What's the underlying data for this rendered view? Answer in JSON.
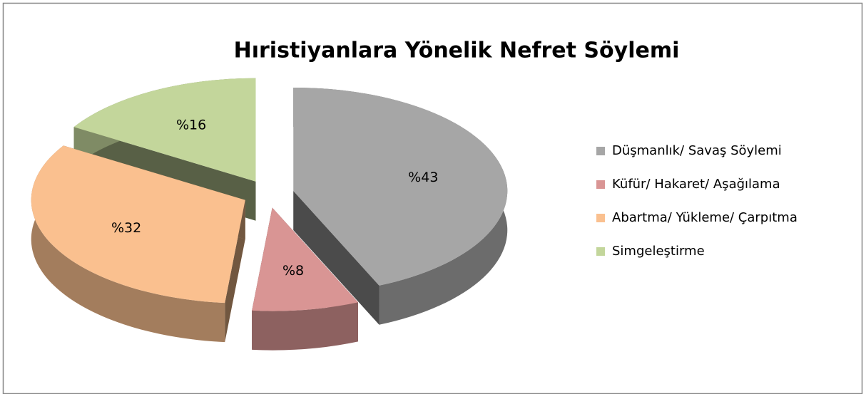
{
  "chart_data": {
    "type": "pie3d",
    "title": "Hıristiyanlara Yönelik Nefret Söylemi",
    "categories": [
      "Düşmanlık/ Savaş Söylemi",
      "Küfür/ Hakaret/ Aşağılama",
      "Abartma/ Yükleme/ Çarpıtma",
      "Simgeleştirme"
    ],
    "values": [
      43,
      8,
      32,
      16
    ],
    "value_labels": [
      "%43",
      "%8",
      "%32",
      "%16"
    ],
    "colors": [
      "#a6a6a6",
      "#d99594",
      "#fac08f",
      "#c3d69b"
    ],
    "legend": "right"
  }
}
